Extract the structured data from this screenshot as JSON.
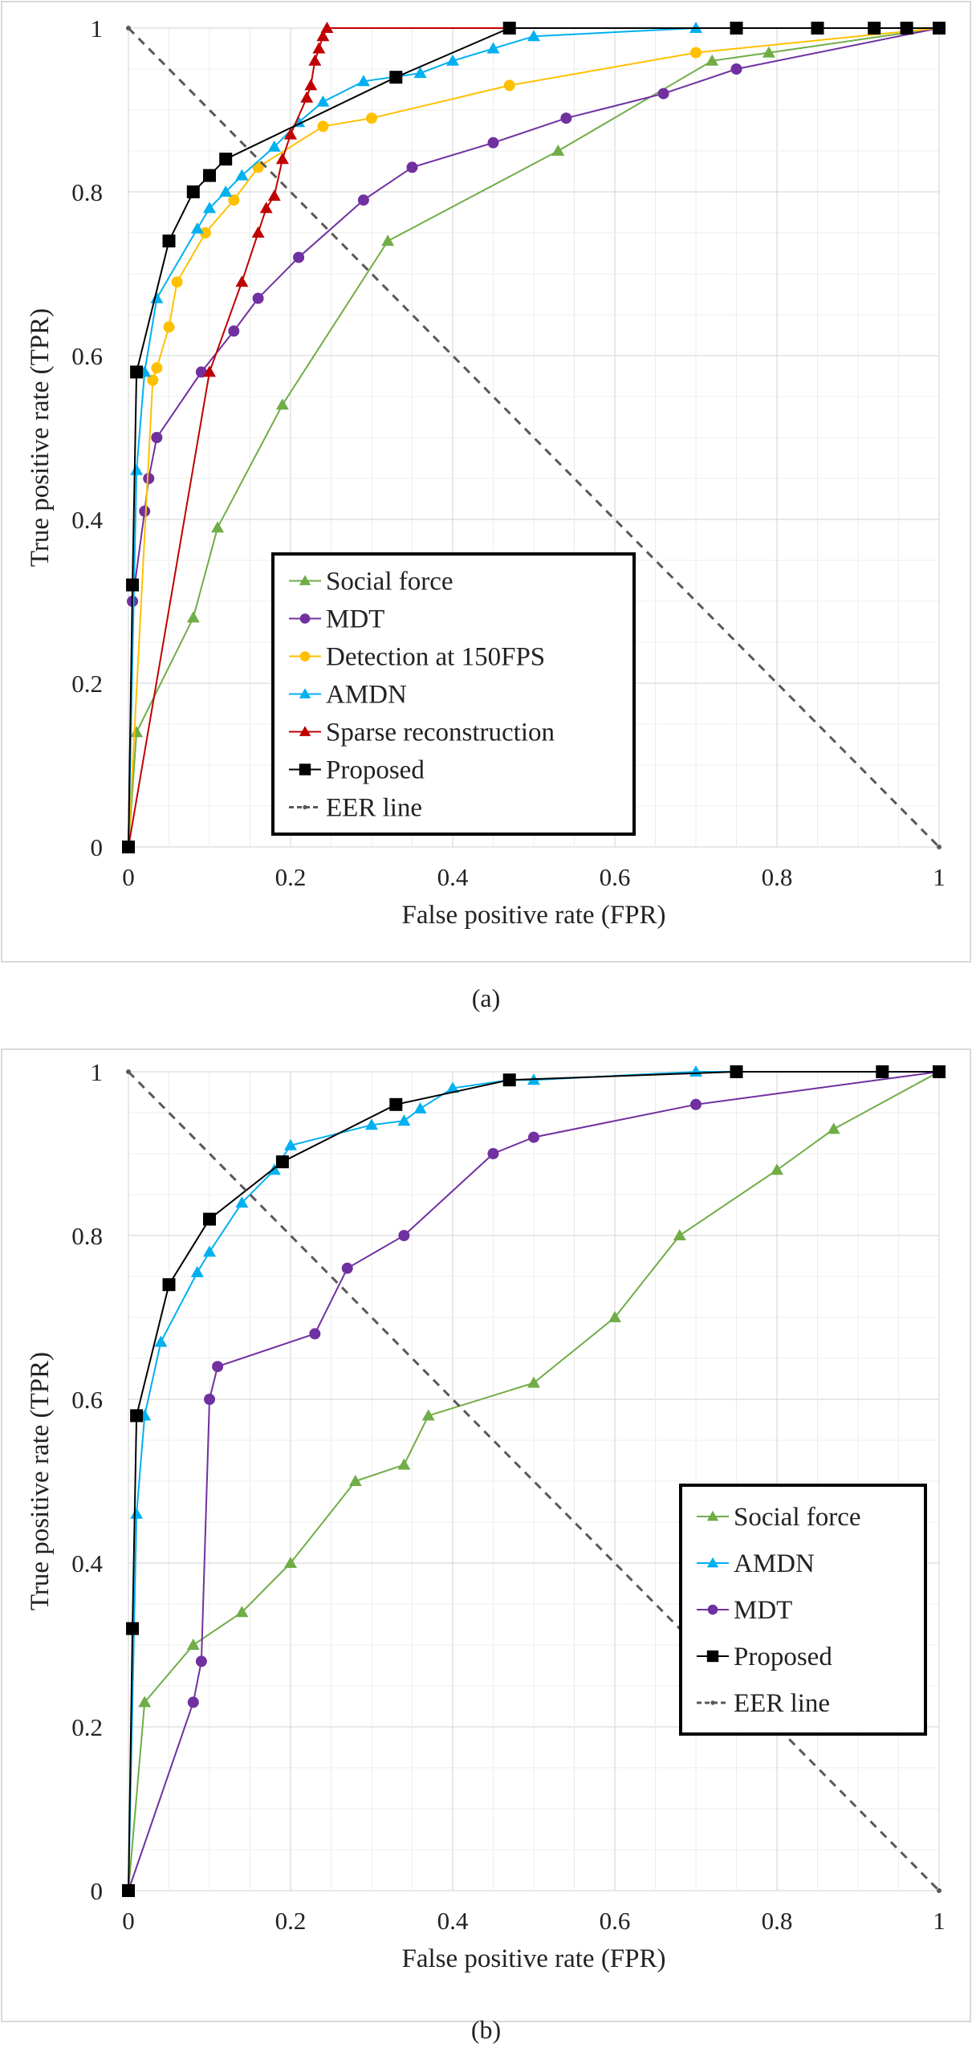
{
  "chart_data": [
    {
      "type": "line",
      "caption": "(a)",
      "xlabel": "False positive rate (FPR)",
      "ylabel": "True positive rate (TPR)",
      "xlim": [
        0,
        1
      ],
      "ylim": [
        0,
        1
      ],
      "xticks": [
        "0",
        "0.2",
        "0.4",
        "0.6",
        "0.8",
        "1"
      ],
      "yticks": [
        "0",
        "0.2",
        "0.4",
        "0.6",
        "0.8",
        "1"
      ],
      "grid": true,
      "legend_position": "bottom-center",
      "series": [
        {
          "name": "Social force",
          "color": "#70ad47",
          "marker": "triangle",
          "x": [
            0,
            0.01,
            0.08,
            0.11,
            0.19,
            0.32,
            0.53,
            0.72,
            0.79,
            1
          ],
          "y": [
            0,
            0.14,
            0.28,
            0.39,
            0.54,
            0.74,
            0.85,
            0.96,
            0.97,
            1
          ]
        },
        {
          "name": "MDT",
          "color": "#7030a0",
          "marker": "circle",
          "x": [
            0,
            0.005,
            0.02,
            0.025,
            0.035,
            0.09,
            0.13,
            0.16,
            0.21,
            0.29,
            0.35,
            0.45,
            0.54,
            0.66,
            0.75,
            1
          ],
          "y": [
            0,
            0.3,
            0.41,
            0.45,
            0.5,
            0.58,
            0.63,
            0.67,
            0.72,
            0.79,
            0.83,
            0.86,
            0.89,
            0.92,
            0.95,
            1
          ]
        },
        {
          "name": "Detection at 150FPS",
          "color": "#ffc000",
          "marker": "circle",
          "x": [
            0,
            0.03,
            0.035,
            0.05,
            0.06,
            0.095,
            0.13,
            0.16,
            0.24,
            0.3,
            0.47,
            0.7,
            1
          ],
          "y": [
            0,
            0.57,
            0.585,
            0.635,
            0.69,
            0.75,
            0.79,
            0.83,
            0.88,
            0.89,
            0.93,
            0.97,
            1
          ]
        },
        {
          "name": "AMDN",
          "color": "#00b0f0",
          "marker": "triangle",
          "x": [
            0,
            0.01,
            0.02,
            0.035,
            0.085,
            0.1,
            0.12,
            0.14,
            0.18,
            0.21,
            0.24,
            0.29,
            0.36,
            0.4,
            0.45,
            0.5,
            0.7,
            1
          ],
          "y": [
            0,
            0.46,
            0.58,
            0.67,
            0.755,
            0.78,
            0.8,
            0.82,
            0.855,
            0.885,
            0.91,
            0.935,
            0.945,
            0.96,
            0.975,
            0.99,
            1,
            1
          ]
        },
        {
          "name": "Sparse reconstruction",
          "color": "#c00000",
          "marker": "triangle",
          "x": [
            0,
            0.1,
            0.14,
            0.16,
            0.17,
            0.18,
            0.19,
            0.2,
            0.22,
            0.225,
            0.23,
            0.235,
            0.24,
            0.245,
            1
          ],
          "y": [
            0,
            0.58,
            0.69,
            0.75,
            0.78,
            0.795,
            0.84,
            0.87,
            0.915,
            0.93,
            0.96,
            0.975,
            0.99,
            1,
            1
          ]
        },
        {
          "name": "Proposed",
          "color": "#000000",
          "marker": "square",
          "x": [
            0,
            0.005,
            0.01,
            0.05,
            0.08,
            0.1,
            0.12,
            0.33,
            0.47,
            0.75,
            0.85,
            0.92,
            0.96,
            1
          ],
          "y": [
            0,
            0.32,
            0.58,
            0.74,
            0.8,
            0.82,
            0.84,
            0.94,
            1,
            1,
            1,
            1,
            1,
            1
          ]
        },
        {
          "name": "EER line",
          "color": "#595959",
          "marker": "dot",
          "dashed": true,
          "x": [
            0,
            1
          ],
          "y": [
            1,
            0
          ]
        }
      ]
    },
    {
      "type": "line",
      "caption": "(b)",
      "xlabel": "False positive rate (FPR)",
      "ylabel": "True positive rate (TPR)",
      "xlim": [
        0,
        1
      ],
      "ylim": [
        0,
        1
      ],
      "xticks": [
        "0",
        "0.2",
        "0.4",
        "0.6",
        "0.8",
        "1"
      ],
      "yticks": [
        "0",
        "0.2",
        "0.4",
        "0.6",
        "0.8",
        "1"
      ],
      "grid": true,
      "legend_position": "right",
      "series": [
        {
          "name": "Social force",
          "color": "#70ad47",
          "marker": "triangle",
          "x": [
            0,
            0.02,
            0.08,
            0.14,
            0.2,
            0.28,
            0.34,
            0.37,
            0.5,
            0.6,
            0.68,
            0.8,
            0.87,
            1
          ],
          "y": [
            0,
            0.23,
            0.3,
            0.34,
            0.4,
            0.5,
            0.52,
            0.58,
            0.62,
            0.7,
            0.8,
            0.88,
            0.93,
            1
          ]
        },
        {
          "name": "AMDN",
          "color": "#00b0f0",
          "marker": "triangle",
          "x": [
            0,
            0.01,
            0.02,
            0.04,
            0.085,
            0.1,
            0.14,
            0.18,
            0.2,
            0.3,
            0.34,
            0.36,
            0.4,
            0.47,
            0.5,
            0.7,
            1
          ],
          "y": [
            0,
            0.46,
            0.58,
            0.67,
            0.755,
            0.78,
            0.84,
            0.88,
            0.91,
            0.935,
            0.94,
            0.955,
            0.98,
            0.99,
            0.99,
            1,
            1
          ]
        },
        {
          "name": "MDT",
          "color": "#7030a0",
          "marker": "circle",
          "x": [
            0,
            0.08,
            0.09,
            0.1,
            0.11,
            0.23,
            0.27,
            0.34,
            0.45,
            0.5,
            0.7,
            1
          ],
          "y": [
            0,
            0.23,
            0.28,
            0.6,
            0.64,
            0.68,
            0.76,
            0.8,
            0.9,
            0.92,
            0.96,
            1
          ]
        },
        {
          "name": "Proposed",
          "color": "#000000",
          "marker": "square",
          "x": [
            0,
            0.005,
            0.01,
            0.05,
            0.1,
            0.19,
            0.33,
            0.47,
            0.75,
            0.93,
            1
          ],
          "y": [
            0,
            0.32,
            0.58,
            0.74,
            0.82,
            0.89,
            0.96,
            0.99,
            1,
            1,
            1
          ]
        },
        {
          "name": "EER line",
          "color": "#595959",
          "marker": "dot",
          "dashed": true,
          "x": [
            0,
            1
          ],
          "y": [
            1,
            0
          ]
        }
      ]
    }
  ]
}
